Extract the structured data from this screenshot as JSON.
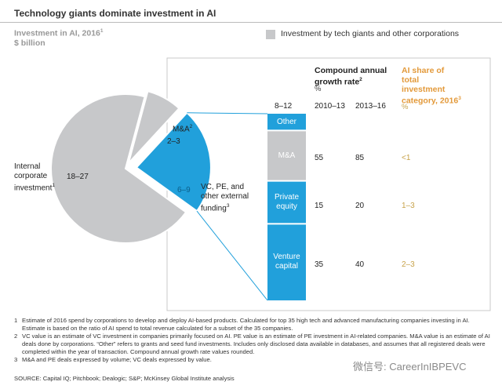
{
  "title": "Technology giants dominate investment in AI",
  "subtitle": {
    "line1": "Investment in AI, 2016",
    "line1_sup": "1",
    "line2": "$ billion"
  },
  "legend": {
    "label": "Investment by tech giants and other corporations",
    "color": "#c7c8ca"
  },
  "colors": {
    "gray": "#c7c8ca",
    "blue": "#21a0db",
    "orange": "#e39a3b"
  },
  "chart_data": {
    "type": "pie",
    "slices": [
      {
        "name": "Internal corporate investment",
        "label_lines": [
          "Internal",
          "corporate",
          "investment"
        ],
        "sup": "1",
        "value_text": "18–27",
        "value": 22.5,
        "color": "#c7c8ca"
      },
      {
        "name": "M&A",
        "label_lines": [
          "M&A"
        ],
        "sup": "2",
        "value_text": "2–3",
        "value": 2.5,
        "color": "#c7c8ca"
      },
      {
        "name": "VC, PE, and other external funding",
        "label_lines": [
          "VC, PE, and",
          "other external",
          "funding"
        ],
        "sup": "3",
        "value_text": "6–9",
        "value": 7.5,
        "color": "#21a0db"
      }
    ],
    "breakdown": {
      "total_text": "8–12",
      "segments": [
        {
          "label": "Other",
          "share": 0.09
        },
        {
          "label": "M&A",
          "share": 0.27
        },
        {
          "label": "Private equity",
          "label_lines": [
            "Private",
            "equity"
          ],
          "share": 0.23
        },
        {
          "label": "Venture capital",
          "label_lines": [
            "Venture",
            "capital"
          ],
          "share": 0.41
        }
      ]
    },
    "table": {
      "cagr_header": [
        "Compound annual",
        "growth rate"
      ],
      "cagr_sup": "2",
      "cagr_unit": "%",
      "col_2010": "2010–13",
      "col_2013": "2013–16",
      "share_header": [
        "AI share of",
        "total",
        "investment",
        "category, 2016"
      ],
      "share_sup": "3",
      "share_unit": "%",
      "rows": [
        {
          "category": "M&A",
          "cagr_2010_13": "55",
          "cagr_2013_16": "85",
          "ai_share": "<1"
        },
        {
          "category": "Private equity",
          "cagr_2010_13": "15",
          "cagr_2013_16": "20",
          "ai_share": "1–3"
        },
        {
          "category": "Venture capital",
          "cagr_2010_13": "35",
          "cagr_2013_16": "40",
          "ai_share": "2–3"
        }
      ]
    }
  },
  "footnotes": [
    {
      "n": "1",
      "text": "Estimate of 2016 spend by corporations to develop and deploy AI-based products. Calculated for top 35 high tech and advanced manufacturing companies investing in AI. Estimate is based on the ratio of AI spend to total revenue calculated for a subset of the 35 companies."
    },
    {
      "n": "2",
      "text": "VC value is an estimate of VC investment in companies primarily focused on AI. PE value is an estimate of PE investment in AI-related companies. M&A value is an estimate of AI deals done by corporations. “Other” refers to grants and seed fund investments. Includes only disclosed data available in databases, and assumes that all registered deals were completed within the year of transaction. Compound annual growth rate values rounded."
    },
    {
      "n": "3",
      "text": "M&A and PE deals expressed by volume; VC deals expressed by value."
    }
  ],
  "source": "SOURCE: Capital IQ; Pitchbook; Dealogic; S&P; McKinsey Global Institute analysis",
  "watermark": "微信号: CareerInIBPEVC"
}
